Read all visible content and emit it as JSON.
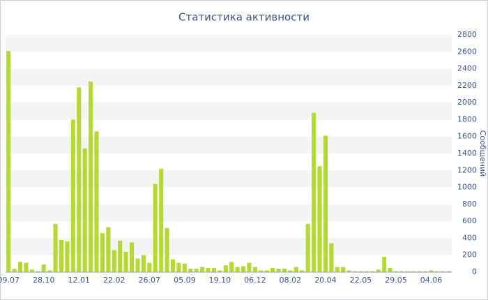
{
  "chart_data": {
    "type": "bar",
    "title": "Статистика активности",
    "y_label": "Сообщений",
    "categories": [
      "09.07",
      null,
      null,
      null,
      null,
      null,
      "28.10",
      null,
      null,
      null,
      null,
      null,
      "12.01",
      null,
      null,
      null,
      null,
      null,
      "22.02",
      null,
      null,
      null,
      null,
      null,
      "26.07",
      null,
      null,
      null,
      null,
      null,
      "05.09",
      null,
      null,
      null,
      null,
      null,
      "19.10",
      null,
      null,
      null,
      null,
      null,
      "06.12",
      null,
      null,
      null,
      null,
      null,
      "08.02",
      null,
      null,
      null,
      null,
      null,
      "20.04",
      null,
      null,
      null,
      null,
      null,
      "22.05",
      null,
      null,
      null,
      null,
      null,
      "29.05",
      null,
      null,
      null,
      null,
      null,
      "04.06",
      null,
      null,
      null
    ],
    "values": [
      2610,
      40,
      120,
      110,
      30,
      10,
      90,
      20,
      570,
      380,
      360,
      1800,
      2180,
      1460,
      2250,
      1660,
      460,
      530,
      260,
      370,
      240,
      350,
      160,
      200,
      110,
      1040,
      1220,
      520,
      150,
      110,
      100,
      40,
      40,
      60,
      50,
      50,
      20,
      80,
      120,
      60,
      70,
      110,
      60,
      20,
      20,
      50,
      40,
      40,
      20,
      60,
      20,
      570,
      1880,
      1250,
      1610,
      340,
      60,
      60,
      20,
      10,
      10,
      10,
      10,
      30,
      180,
      50,
      10,
      10,
      10,
      10,
      10,
      10,
      20,
      10,
      10,
      10
    ],
    "color": "#b5d930",
    "ylim": [
      0,
      2800
    ],
    "yticks": [
      0,
      200,
      400,
      600,
      800,
      1000,
      1200,
      1400,
      1600,
      1800,
      2000,
      2200,
      2400,
      2600,
      2800
    ],
    "grid": true,
    "y_axis_side": "right"
  }
}
